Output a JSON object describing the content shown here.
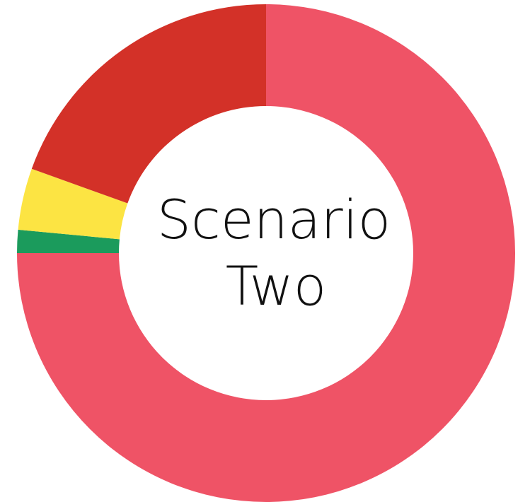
{
  "chart_data": {
    "type": "donut",
    "center_text": [
      "Scenario",
      "Two"
    ],
    "values": [
      75,
      1.5,
      4,
      19.5
    ],
    "colors": [
      "#ef5366",
      "#1b9b5c",
      "#fce443",
      "#d33128"
    ],
    "start_angle": 0,
    "direction": "clockwise"
  }
}
